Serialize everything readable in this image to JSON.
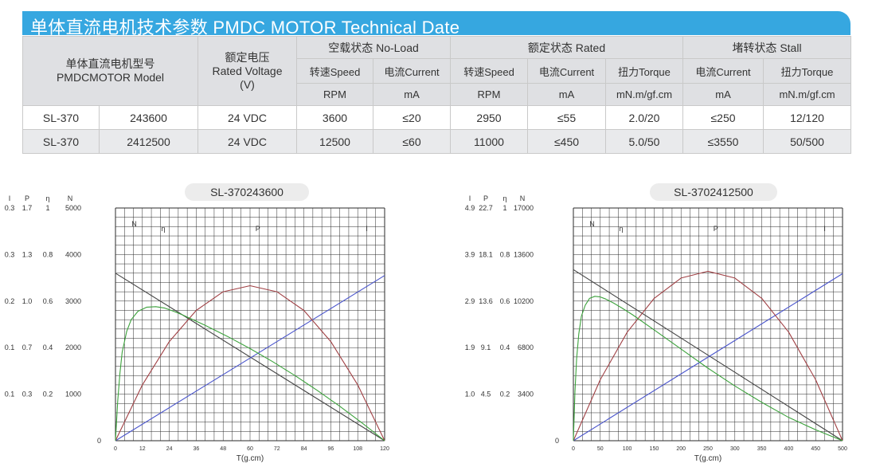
{
  "banner_title": "单体直流电机技术参数  PMDC MOTOR Technical Date",
  "table": {
    "model_label_zh": "单体直流电机型号",
    "model_label_en": "PMDCMOTOR Model",
    "voltage_label_zh": "额定电压",
    "voltage_label_en": "Rated Voltage",
    "voltage_unit": "(V)",
    "no_load": "空载状态 No-Load",
    "rated": "额定状态 Rated",
    "stall": "堵转状态 Stall",
    "subheaders": [
      "转速Speed",
      "电流Current",
      "转速Speed",
      "电流Current",
      "扭力Torque",
      "电流Current",
      "扭力Torque"
    ],
    "units": [
      "RPM",
      "mA",
      "RPM",
      "mA",
      "mN.m/gf.cm",
      "mA",
      "mN.m/gf.cm"
    ],
    "rows": [
      [
        "SL-370",
        "243600",
        "24 VDC",
        "3600",
        "≤20",
        "2950",
        "≤55",
        "2.0/20",
        "≤250",
        "12/120"
      ],
      [
        "SL-370",
        "2412500",
        "24 VDC",
        "12500",
        "≤60",
        "11000",
        "≤450",
        "5.0/50",
        "≤3550",
        "50/500"
      ]
    ]
  },
  "chart_data": [
    {
      "type": "line",
      "title": "SL-370243600",
      "xlabel": "T(g.cm)",
      "x_ticks": [
        "0",
        "12",
        "24",
        "36",
        "48",
        "60",
        "72",
        "84",
        "96",
        "108",
        "120"
      ],
      "axis_headers": [
        "I",
        "P",
        "η",
        "N"
      ],
      "y_tick_rows": [
        [
          "0.3",
          "1.7",
          "1",
          "5000"
        ],
        [
          "0.3",
          "1.3",
          "0.8",
          "4000"
        ],
        [
          "0.2",
          "1.0",
          "0.6",
          "3000"
        ],
        [
          "0.1",
          "0.7",
          "0.4",
          "2000"
        ],
        [
          "0.1",
          "0.3",
          "0.2",
          "1000"
        ],
        [
          "",
          "",
          "",
          "0"
        ]
      ],
      "xlim": [
        0,
        120
      ],
      "ylim_N": [
        0,
        5000
      ],
      "grid": true,
      "series": [
        {
          "name": "N",
          "color": "#444444",
          "x": [
            0,
            120
          ],
          "y": [
            3600,
            0
          ]
        },
        {
          "name": "I",
          "color": "#4a55cc",
          "x": [
            0,
            120
          ],
          "y": [
            0,
            3550
          ]
        },
        {
          "name": "P",
          "color": "#a04044",
          "x": [
            0,
            12,
            24,
            36,
            48,
            60,
            72,
            84,
            96,
            108,
            120
          ],
          "y": [
            0,
            1200,
            2130,
            2800,
            3200,
            3330,
            3200,
            2800,
            2130,
            1200,
            0
          ]
        },
        {
          "name": "η",
          "color": "#3ca23c",
          "x": [
            0,
            1,
            2,
            3,
            5,
            7,
            10,
            14,
            18,
            22,
            26,
            30,
            40,
            50,
            60,
            70,
            80,
            90,
            100,
            110,
            120
          ],
          "y": [
            0,
            850,
            1450,
            1900,
            2350,
            2600,
            2780,
            2870,
            2880,
            2850,
            2780,
            2700,
            2480,
            2240,
            1980,
            1700,
            1400,
            1080,
            740,
            380,
            0
          ]
        }
      ]
    },
    {
      "type": "line",
      "title": "SL-3702412500",
      "xlabel": "T(g.cm)",
      "x_ticks": [
        "0",
        "50",
        "100",
        "150",
        "200",
        "250",
        "300",
        "350",
        "400",
        "450",
        "500"
      ],
      "axis_headers": [
        "I",
        "P",
        "η",
        "N"
      ],
      "y_tick_rows": [
        [
          "4.9",
          "22.7",
          "1",
          "17000"
        ],
        [
          "3.9",
          "18.1",
          "0.8",
          "13600"
        ],
        [
          "2.9",
          "13.6",
          "0.6",
          "10200"
        ],
        [
          "1.9",
          "9.1",
          "0.4",
          "6800"
        ],
        [
          "1.0",
          "4.5",
          "0.2",
          "3400"
        ],
        [
          "",
          "",
          "",
          "0"
        ]
      ],
      "xlim": [
        0,
        500
      ],
      "ylim_N": [
        0,
        17000
      ],
      "grid": true,
      "series": [
        {
          "name": "N",
          "color": "#444444",
          "x": [
            0,
            500
          ],
          "y": [
            12500,
            0
          ]
        },
        {
          "name": "I",
          "color": "#4a55cc",
          "x": [
            0,
            500
          ],
          "y": [
            0,
            12200
          ]
        },
        {
          "name": "P",
          "color": "#a04044",
          "x": [
            0,
            50,
            100,
            150,
            200,
            250,
            300,
            350,
            400,
            450,
            500
          ],
          "y": [
            0,
            4460,
            7930,
            10400,
            11880,
            12380,
            11880,
            10400,
            7930,
            4460,
            0
          ]
        },
        {
          "name": "η",
          "color": "#3ca23c",
          "x": [
            0,
            3,
            6,
            10,
            15,
            22,
            30,
            40,
            50,
            60,
            75,
            90,
            110,
            150,
            200,
            250,
            300,
            350,
            400,
            450,
            500
          ],
          "y": [
            0,
            3600,
            6000,
            7800,
            9100,
            9900,
            10400,
            10550,
            10500,
            10350,
            10050,
            9700,
            9200,
            8100,
            6700,
            5300,
            4000,
            2800,
            1700,
            800,
            0
          ]
        }
      ]
    }
  ]
}
